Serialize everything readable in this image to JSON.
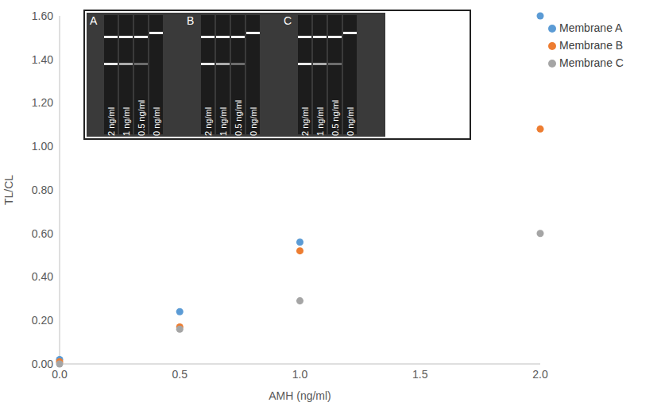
{
  "chart_data": {
    "type": "scatter",
    "x_label": "AMH (ng/ml)",
    "y_label": "TL/CL",
    "x": [
      0,
      0.5,
      1,
      2
    ],
    "series": [
      {
        "name": "Membrane A",
        "color": "#5b9bd5",
        "marker": "circle",
        "values": [
          0.02,
          0.24,
          0.56,
          1.6
        ]
      },
      {
        "name": "Membrane B",
        "color": "#ed7d31",
        "marker": "circle",
        "values": [
          0.01,
          0.17,
          0.52,
          1.08
        ]
      },
      {
        "name": "Membrane C",
        "color": "#a5a5a5",
        "marker": "circle",
        "values": [
          0.0,
          0.16,
          0.29,
          0.6
        ]
      }
    ],
    "xlim": [
      0,
      2
    ],
    "xticks": [
      {
        "value": 0,
        "label": "0.0"
      },
      {
        "value": 0.5,
        "label": "0.5"
      },
      {
        "value": 1,
        "label": "1.0"
      },
      {
        "value": 1.5,
        "label": "1.5"
      },
      {
        "value": 2,
        "label": "2.0"
      }
    ],
    "ylim": [
      0,
      1.6
    ],
    "yticks": [
      {
        "value": 0,
        "label": "0.00"
      },
      {
        "value": 0.2,
        "label": "0.20"
      },
      {
        "value": 0.4,
        "label": "0.40"
      },
      {
        "value": 0.6,
        "label": "0.60"
      },
      {
        "value": 0.8,
        "label": "0.80"
      },
      {
        "value": 1.0,
        "label": "1.00"
      },
      {
        "value": 1.2,
        "label": "1.20"
      },
      {
        "value": 1.4,
        "label": "1.40"
      },
      {
        "value": 1.6,
        "label": "1.60"
      }
    ],
    "grid": false,
    "legend": "upper right",
    "inset": {
      "panels": [
        {
          "label": "A",
          "lanes": [
            "2 ng/ml",
            "1 ng/ml",
            "0.5 ng/ml",
            "0 ng/ml"
          ]
        },
        {
          "label": "B",
          "lanes": [
            "2 ng/ml",
            "1 ng/ml",
            "0.5 ng/ml",
            "0 ng/ml"
          ]
        },
        {
          "label": "C",
          "lanes": [
            "2 ng/ml",
            "1 ng/ml",
            "0.5 ng/ml",
            "0 ng/ml"
          ]
        }
      ]
    }
  }
}
